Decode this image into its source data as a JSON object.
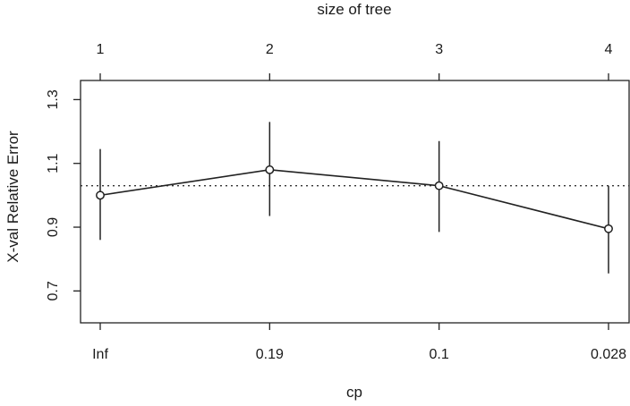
{
  "chart_data": {
    "type": "line",
    "title": "",
    "xlabel": "cp",
    "ylabel": "X-val Relative Error",
    "top_axis_label": "size of tree",
    "x_tick_labels": [
      "Inf",
      "0.19",
      "0.1",
      "0.028"
    ],
    "top_tick_labels": [
      "1",
      "2",
      "3",
      "4"
    ],
    "y_ticks": [
      "0.7",
      "0.9",
      "1.1",
      "1.3"
    ],
    "ylim": [
      0.6,
      1.36
    ],
    "grid": false,
    "reference_line": 1.03,
    "series": [
      {
        "values": [
          1.0,
          1.08,
          1.03,
          0.895
        ],
        "lower": [
          0.86,
          0.935,
          0.885,
          0.755
        ],
        "upper": [
          1.145,
          1.23,
          1.17,
          1.03
        ]
      }
    ]
  }
}
